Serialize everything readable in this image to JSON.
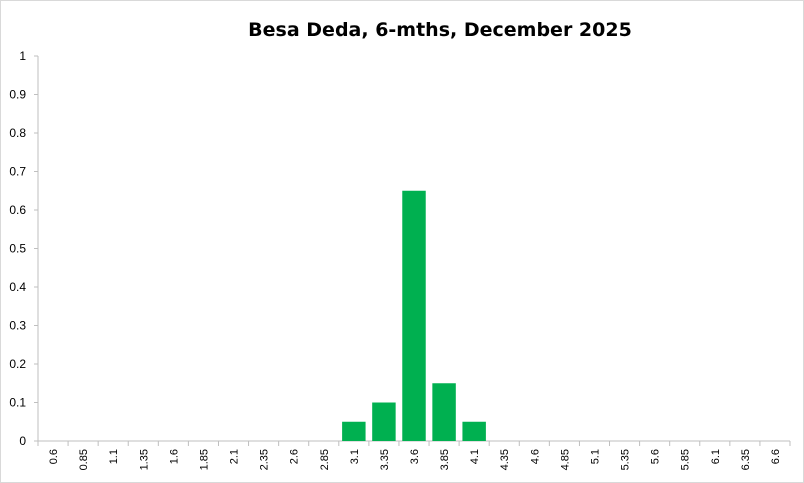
{
  "chart_data": {
    "type": "bar",
    "title": "Besa Deda, 6-mths, December 2025",
    "xlabel": "",
    "ylabel": "",
    "ylim": [
      0,
      1
    ],
    "yticks": [
      "0",
      "0.1",
      "0.2",
      "0.3",
      "0.4",
      "0.5",
      "0.6",
      "0.7",
      "0.8",
      "0.9",
      "1"
    ],
    "categories": [
      "0.6",
      "0.85",
      "1.1",
      "1.35",
      "1.6",
      "1.85",
      "2.1",
      "2.35",
      "2.6",
      "2.85",
      "3.1",
      "3.35",
      "3.6",
      "3.85",
      "4.1",
      "4.35",
      "4.6",
      "4.85",
      "5.1",
      "5.35",
      "5.6",
      "5.85",
      "6.1",
      "6.35",
      "6.6"
    ],
    "values": [
      0,
      0,
      0,
      0,
      0,
      0,
      0,
      0,
      0,
      0,
      0.05,
      0.1,
      0.65,
      0.15,
      0.05,
      0,
      0,
      0,
      0,
      0,
      0,
      0,
      0,
      0,
      0
    ],
    "grid": false,
    "legend": "none",
    "bar_color": "#00b050"
  }
}
